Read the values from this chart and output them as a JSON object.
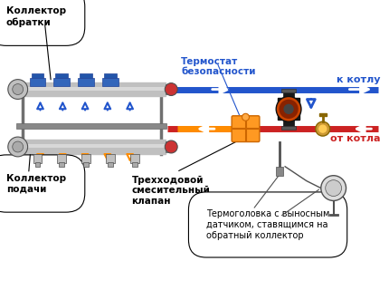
{
  "bg_color": "#ffffff",
  "blue_color": "#2255cc",
  "red_color": "#cc2222",
  "orange_color": "#ff8c00",
  "labels": {
    "kollector_obratki": "Коллектор\nобратки",
    "kollector_podachi": "Коллектор\nподачи",
    "termostat": "Термостат\nбезопасности",
    "trekhkhodovoy": "Трехходовой\nсмесительный\nклапан",
    "k_kotlu": "к котлу",
    "ot_kotla": "от котла",
    "termogolovka": "Термоголовка с выносным\nдатчиком, ставящимся на\nобратный коллектор"
  }
}
